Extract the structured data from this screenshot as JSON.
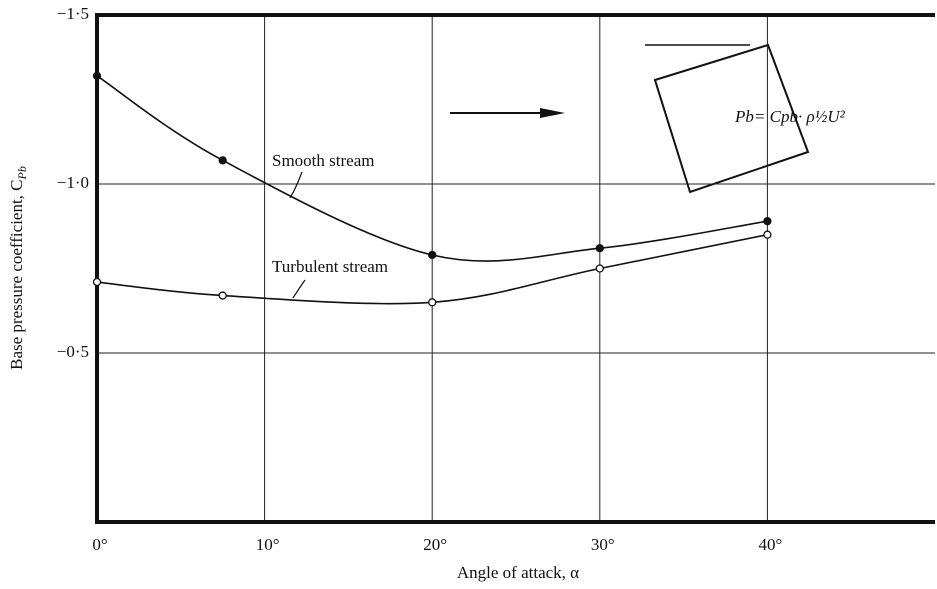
{
  "chart_data": {
    "type": "line",
    "x_label": "Angle of attack, α",
    "y_label": "Base pressure coefficient, C",
    "y_label_subscript": "Pb",
    "formula": "Pb= Cpb· ρ½U²",
    "xlim": [
      0,
      50
    ],
    "ylim": [
      0,
      -1.5
    ],
    "xticks": [
      {
        "value": 0,
        "label": "0°"
      },
      {
        "value": 10,
        "label": "10°"
      },
      {
        "value": 20,
        "label": "20°"
      },
      {
        "value": 30,
        "label": "30°"
      },
      {
        "value": 40,
        "label": "40°"
      }
    ],
    "yticks": [
      {
        "value": -1.5,
        "label": "−1·5"
      },
      {
        "value": -1.0,
        "label": "−1·0"
      },
      {
        "value": -0.5,
        "label": "−0·5"
      }
    ],
    "grid": true,
    "series": [
      {
        "name": "Smooth stream",
        "color": "#111",
        "marker": "filled",
        "x": [
          0,
          7.5,
          20,
          30,
          40
        ],
        "values": [
          -1.32,
          -1.07,
          -0.79,
          -0.81,
          -0.89
        ]
      },
      {
        "name": "Turbulent stream",
        "color": "#111",
        "marker": "open",
        "x": [
          0,
          7.5,
          20,
          30,
          40
        ],
        "values": [
          -0.71,
          -0.67,
          -0.65,
          -0.75,
          -0.85
        ]
      }
    ]
  }
}
